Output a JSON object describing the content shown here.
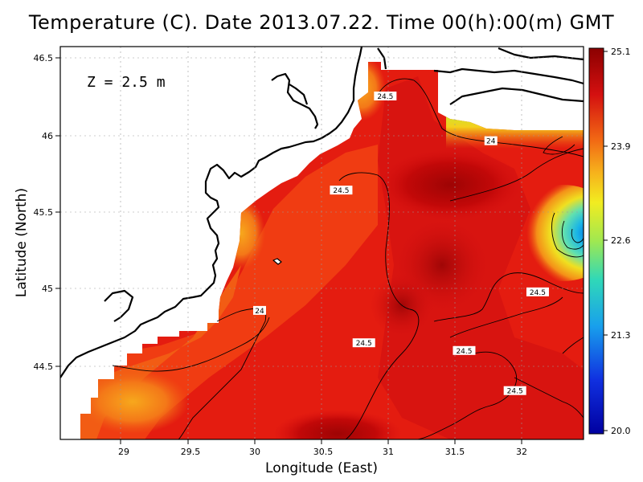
{
  "title": "Temperature (C). Date 2013.07.22. Time 00(h):00(m) GMT",
  "depth_label": "Z = 2.5 m",
  "xlabel": "Longitude (East)",
  "ylabel": "Latitude (North)",
  "x_ticks": [
    "29",
    "29.5",
    "30",
    "30.5",
    "31",
    "31.5",
    "32"
  ],
  "y_ticks": [
    "44.5",
    "45",
    "45.5",
    "46",
    "46.5"
  ],
  "colorbar_ticks": [
    "25.1",
    "23.9",
    "22.6",
    "21.3",
    "20.0"
  ],
  "contour_labels": [
    {
      "text": "24.5",
      "lon": 30.98,
      "lat": 46.25
    },
    {
      "text": "24",
      "lon": 31.77,
      "lat": 45.96
    },
    {
      "text": "24.5",
      "lon": 30.65,
      "lat": 45.64
    },
    {
      "text": "24.5",
      "lon": 32.12,
      "lat": 44.98
    },
    {
      "text": "24",
      "lon": 30.04,
      "lat": 44.86
    },
    {
      "text": "24.5",
      "lon": 30.82,
      "lat": 44.65
    },
    {
      "text": "24.5",
      "lon": 31.57,
      "lat": 44.6
    },
    {
      "text": "24.5",
      "lon": 31.95,
      "lat": 44.34
    }
  ],
  "chart_data": {
    "type": "heatmap",
    "title": "Temperature (C). Date 2013.07.22. Time 00(h):00(m) GMT",
    "xlabel": "Longitude (East)",
    "ylabel": "Latitude (North)",
    "xlim": [
      28.5,
      32.45
    ],
    "ylim": [
      44.05,
      46.55
    ],
    "colorbar_range": [
      20.0,
      25.1
    ],
    "grid": true,
    "annotation": "Z = 2.5 m"
  },
  "colors": {
    "dark_red": "#8b0000",
    "red": "#e01010",
    "orange_red": "#f04010",
    "orange": "#f47a16",
    "yellow": "#f6e61e",
    "cyan": "#20c8e6",
    "blue": "#0000c0"
  }
}
